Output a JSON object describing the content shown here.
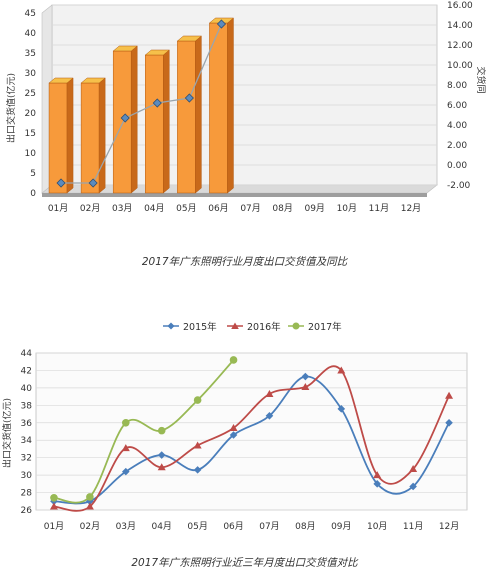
{
  "colors": {
    "bar_front": "#F79A3B",
    "bar_side": "#C8691A",
    "bar_top": "#F6C04A",
    "yoy_line": "#9AA5AD",
    "marker_fill": "#5B8BBE",
    "series_2015": "#4A7EBB",
    "series_2016": "#BE4B48",
    "series_2017": "#98B954",
    "plot_bg": "#F2F2F2",
    "grid": "#D9D9D9"
  },
  "chart1": {
    "caption": "2017年广东照明行业月度出口交货值及同比",
    "ylabel": "出口交货值(亿元)",
    "y2label": "交货同",
    "yticks": [
      "0",
      "5",
      "10",
      "15",
      "20",
      "25",
      "30",
      "35",
      "40",
      "45"
    ],
    "y2ticks": [
      "-2.00",
      "0.00",
      "2.00",
      "4.00",
      "6.00",
      "8.00",
      "10.00",
      "12.00",
      "14.00",
      "16.00"
    ]
  },
  "chart2": {
    "caption": "2017年广东照明行业近三年月度出口交货值对比",
    "ylabel": "出口交货值(亿元)",
    "yticks": [
      "26",
      "28",
      "30",
      "32",
      "34",
      "36",
      "38",
      "40",
      "42",
      "44"
    ]
  },
  "chart_data": [
    {
      "type": "bar",
      "title": "2017年广东照明行业月度出口交货值及同比",
      "categories": [
        "01月",
        "02月",
        "03月",
        "04月",
        "05月",
        "06月",
        "07月",
        "08月",
        "09月",
        "10月",
        "11月",
        "12月"
      ],
      "ylabel": "出口交货值(亿元)",
      "ylim": [
        0,
        45
      ],
      "y2label": "交货同",
      "y2lim": [
        -2,
        16
      ],
      "series": [
        {
          "type": "bar",
          "axis": "left",
          "values": [
            27.5,
            27.5,
            35.5,
            34.5,
            38,
            42.5,
            null,
            null,
            null,
            null,
            null,
            null
          ]
        },
        {
          "type": "line",
          "axis": "right",
          "values": [
            -1.0,
            -1.0,
            5.5,
            7.0,
            7.5,
            14.9,
            null,
            null,
            null,
            null,
            null,
            null
          ]
        }
      ],
      "grid": true
    },
    {
      "type": "line",
      "title": "2017年广东照明行业近三年月度出口交货值对比",
      "categories": [
        "01月",
        "02月",
        "03月",
        "04月",
        "05月",
        "06月",
        "07月",
        "08月",
        "09月",
        "10月",
        "11月",
        "12月"
      ],
      "ylabel": "出口交货值(亿元)",
      "ylim": [
        26,
        44
      ],
      "legend": "top",
      "series": [
        {
          "name": "2015年",
          "marker": "diamond",
          "values": [
            27.0,
            27.0,
            30.4,
            32.3,
            30.6,
            34.6,
            36.8,
            41.3,
            37.6,
            29.0,
            28.7,
            36.0
          ]
        },
        {
          "name": "2016年",
          "marker": "triangle",
          "values": [
            26.4,
            26.4,
            33.1,
            30.9,
            33.4,
            35.4,
            39.3,
            40.1,
            42.0,
            30.0,
            30.7,
            39.1
          ]
        },
        {
          "name": "2017年",
          "marker": "circle",
          "values": [
            27.4,
            27.5,
            36.0,
            35.1,
            38.6,
            43.2,
            null,
            null,
            null,
            null,
            null,
            null
          ]
        }
      ],
      "grid": true
    }
  ]
}
